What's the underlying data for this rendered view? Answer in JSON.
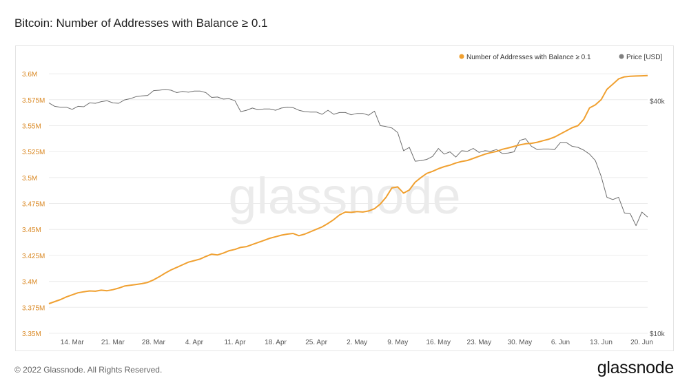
{
  "title": "Bitcoin: Number of Addresses with Balance ≥ 0.1",
  "footer": {
    "copyright": "© 2022 Glassnode. All Rights Reserved.",
    "brand": "glassnode"
  },
  "watermark": "glassnode",
  "colors": {
    "addresses": "#f0a030",
    "price": "#6e6e6e",
    "left_axis_text": "#d9861f",
    "grid": "#ececec",
    "watermark": "#ebebeb"
  },
  "chart_data": {
    "type": "line",
    "x": [
      "2022-03-10",
      "2022-03-11",
      "2022-03-12",
      "2022-03-13",
      "2022-03-14",
      "2022-03-15",
      "2022-03-16",
      "2022-03-17",
      "2022-03-18",
      "2022-03-19",
      "2022-03-20",
      "2022-03-21",
      "2022-03-22",
      "2022-03-23",
      "2022-03-24",
      "2022-03-25",
      "2022-03-26",
      "2022-03-27",
      "2022-03-28",
      "2022-03-29",
      "2022-03-30",
      "2022-03-31",
      "2022-04-01",
      "2022-04-02",
      "2022-04-03",
      "2022-04-04",
      "2022-04-05",
      "2022-04-06",
      "2022-04-07",
      "2022-04-08",
      "2022-04-09",
      "2022-04-10",
      "2022-04-11",
      "2022-04-12",
      "2022-04-13",
      "2022-04-14",
      "2022-04-15",
      "2022-04-16",
      "2022-04-17",
      "2022-04-18",
      "2022-04-19",
      "2022-04-20",
      "2022-04-21",
      "2022-04-22",
      "2022-04-23",
      "2022-04-24",
      "2022-04-25",
      "2022-04-26",
      "2022-04-27",
      "2022-04-28",
      "2022-04-29",
      "2022-04-30",
      "2022-05-01",
      "2022-05-02",
      "2022-05-03",
      "2022-05-04",
      "2022-05-05",
      "2022-05-06",
      "2022-05-07",
      "2022-05-08",
      "2022-05-09",
      "2022-05-10",
      "2022-05-11",
      "2022-05-12",
      "2022-05-13",
      "2022-05-14",
      "2022-05-15",
      "2022-05-16",
      "2022-05-17",
      "2022-05-18",
      "2022-05-19",
      "2022-05-20",
      "2022-05-21",
      "2022-05-22",
      "2022-05-23",
      "2022-05-24",
      "2022-05-25",
      "2022-05-26",
      "2022-05-27",
      "2022-05-28",
      "2022-05-29",
      "2022-05-30",
      "2022-05-31",
      "2022-06-01",
      "2022-06-02",
      "2022-06-03",
      "2022-06-04",
      "2022-06-05",
      "2022-06-06",
      "2022-06-07",
      "2022-06-08",
      "2022-06-09",
      "2022-06-10",
      "2022-06-11",
      "2022-06-12",
      "2022-06-13",
      "2022-06-14",
      "2022-06-15",
      "2022-06-16",
      "2022-06-17",
      "2022-06-18",
      "2022-06-19",
      "2022-06-20",
      "2022-06-21"
    ],
    "series": [
      {
        "name": "Number of Addresses with Balance ≥ 0.1",
        "axis": "left",
        "values": [
          3.3785,
          3.3805,
          3.3825,
          3.385,
          3.387,
          3.389,
          3.39,
          3.3908,
          3.3905,
          3.3915,
          3.391,
          3.392,
          3.3935,
          3.3955,
          3.3962,
          3.397,
          3.3978,
          3.399,
          3.4015,
          3.4045,
          3.408,
          3.411,
          3.4135,
          3.416,
          3.4185,
          3.42,
          3.4215,
          3.424,
          3.4262,
          3.4255,
          3.4272,
          3.4295,
          3.4308,
          3.4328,
          3.4335,
          3.4355,
          3.4375,
          3.4395,
          3.4415,
          3.443,
          3.4445,
          3.4455,
          3.4462,
          3.444,
          3.4455,
          3.4478,
          3.4502,
          3.4525,
          3.4558,
          3.4595,
          3.464,
          3.4668,
          3.4665,
          3.4672,
          3.4668,
          3.4678,
          3.47,
          3.4745,
          3.481,
          3.49,
          3.491,
          3.485,
          3.488,
          3.4955,
          3.5,
          3.504,
          3.506,
          3.5085,
          3.5105,
          3.512,
          3.514,
          3.5155,
          3.5165,
          3.5185,
          3.5205,
          3.5225,
          3.524,
          3.5252,
          3.5272,
          3.5285,
          3.53,
          3.5315,
          3.5325,
          3.533,
          3.534,
          3.5355,
          3.537,
          3.539,
          3.542,
          3.545,
          3.548,
          3.55,
          3.556,
          3.567,
          3.57,
          3.575,
          3.585,
          3.59,
          3.595,
          3.597,
          3.5975,
          3.5978,
          3.598,
          3.5982
        ]
      },
      {
        "name": "Price [USD]",
        "axis": "right",
        "values": [
          39500,
          38700,
          38500,
          38500,
          38000,
          38700,
          38600,
          39500,
          39400,
          39800,
          40000,
          39500,
          39400,
          40200,
          40500,
          41000,
          41200,
          41300,
          42500,
          42600,
          42800,
          42600,
          42000,
          42300,
          42100,
          42400,
          42400,
          42000,
          40800,
          40900,
          40400,
          40500,
          40000,
          37500,
          37800,
          38300,
          37900,
          38100,
          38100,
          37800,
          38300,
          38500,
          38400,
          37800,
          37500,
          37400,
          37400,
          36900,
          37800,
          36900,
          37300,
          37300,
          36800,
          37100,
          37100,
          36700,
          37600,
          34500,
          34300,
          34000,
          33100,
          29700,
          30300,
          27900,
          28000,
          28200,
          28700,
          30100,
          29100,
          29500,
          28600,
          29700,
          29600,
          30100,
          29400,
          29700,
          29600,
          29900,
          29200,
          29300,
          29500,
          31600,
          31900,
          30500,
          29900,
          30000,
          30000,
          29900,
          31200,
          31200,
          30500,
          30300,
          29800,
          29100,
          28000,
          25500,
          22500,
          22200,
          22500,
          20500,
          20400,
          19000,
          20600,
          20000
        ]
      }
    ],
    "left_axis": {
      "ylim": [
        3.35,
        3.61
      ],
      "ticks": [
        3.35,
        3.375,
        3.4,
        3.425,
        3.45,
        3.475,
        3.5,
        3.525,
        3.55,
        3.575,
        3.6
      ],
      "tick_labels": [
        "3.35M",
        "3.375M",
        "3.4M",
        "3.425M",
        "3.45M",
        "3.475M",
        "3.5M",
        "3.525M",
        "3.55M",
        "3.575M",
        "3.6M"
      ]
    },
    "right_axis": {
      "scale": "log",
      "ylim": [
        10000,
        50000
      ],
      "ticks": [
        10000,
        40000
      ],
      "tick_labels": [
        "$10k",
        "$40k"
      ]
    },
    "x_ticks": [
      {
        "date": "2022-03-14",
        "label": "14. Mar"
      },
      {
        "date": "2022-03-21",
        "label": "21. Mar"
      },
      {
        "date": "2022-03-28",
        "label": "28. Mar"
      },
      {
        "date": "2022-04-04",
        "label": "4. Apr"
      },
      {
        "date": "2022-04-11",
        "label": "11. Apr"
      },
      {
        "date": "2022-04-18",
        "label": "18. Apr"
      },
      {
        "date": "2022-04-25",
        "label": "25. Apr"
      },
      {
        "date": "2022-05-02",
        "label": "2. May"
      },
      {
        "date": "2022-05-09",
        "label": "9. May"
      },
      {
        "date": "2022-05-16",
        "label": "16. May"
      },
      {
        "date": "2022-05-23",
        "label": "23. May"
      },
      {
        "date": "2022-05-30",
        "label": "30. May"
      },
      {
        "date": "2022-06-06",
        "label": "6. Jun"
      },
      {
        "date": "2022-06-13",
        "label": "13. Jun"
      },
      {
        "date": "2022-06-20",
        "label": "20. Jun"
      }
    ],
    "legend": {
      "placement": "top-right",
      "entries": [
        {
          "label": "Number of Addresses with Balance ≥ 0.1",
          "color": "#f0a030"
        },
        {
          "label": "Price [USD]",
          "color": "#808080"
        }
      ]
    },
    "grid": "horizontal"
  }
}
